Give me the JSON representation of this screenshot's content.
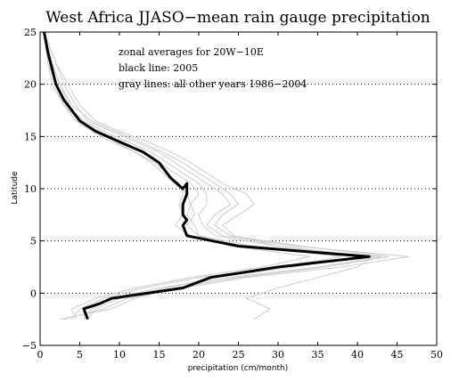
{
  "chart_data": {
    "type": "line",
    "title": "West Africa JJASO−mean rain gauge precipitation",
    "xlabel": "precipitation (cm/month)",
    "ylabel": "Latitude",
    "xlim": [
      0,
      50
    ],
    "ylim": [
      -5,
      25
    ],
    "x_ticks": [
      "0",
      "5",
      "10",
      "15",
      "20",
      "25",
      "30",
      "35",
      "40",
      "45",
      "50"
    ],
    "y_ticks": [
      "−5",
      "0",
      "5",
      "10",
      "15",
      "20",
      "25"
    ],
    "y_gridlines_dotted": [
      0,
      5,
      10,
      15,
      20
    ],
    "annotations": [
      "zonal averages for 20W−10E",
      "black line: 2005",
      "gray lines: all other years 1986−2004"
    ],
    "colors": {
      "highlight": "#000000",
      "background_lines": "#cccccc"
    },
    "highlight_series": {
      "name": "2005",
      "points": [
        [
          0.5,
          25
        ],
        [
          1.0,
          23
        ],
        [
          1.5,
          21.5
        ],
        [
          2.0,
          20.0
        ],
        [
          3.0,
          18.5
        ],
        [
          4.0,
          17.5
        ],
        [
          5.0,
          16.5
        ],
        [
          7.0,
          15.5
        ],
        [
          10.0,
          14.5
        ],
        [
          13.0,
          13.5
        ],
        [
          15.0,
          12.5
        ],
        [
          16.5,
          11.0
        ],
        [
          18.0,
          10.0
        ],
        [
          18.5,
          10.5
        ],
        [
          18.5,
          9.5
        ],
        [
          18.0,
          8.5
        ],
        [
          18.0,
          7.5
        ],
        [
          18.5,
          7.0
        ],
        [
          18.0,
          6.5
        ],
        [
          18.5,
          5.5
        ],
        [
          25.0,
          4.5
        ],
        [
          41.5,
          3.5
        ],
        [
          30.0,
          2.5
        ],
        [
          21.5,
          1.5
        ],
        [
          18.0,
          0.5
        ],
        [
          9.0,
          -0.5
        ],
        [
          7.5,
          -1.0
        ],
        [
          5.5,
          -1.5
        ],
        [
          6.0,
          -2.5
        ]
      ]
    },
    "background_series": [
      {
        "points": [
          [
            0.5,
            25
          ],
          [
            1.5,
            22
          ],
          [
            2.5,
            20
          ],
          [
            4.0,
            17.5
          ],
          [
            5.5,
            16.5
          ],
          [
            8.0,
            15.5
          ],
          [
            11.0,
            14.5
          ],
          [
            14.0,
            13.5
          ],
          [
            16.0,
            12.5
          ],
          [
            18.0,
            11.5
          ],
          [
            20.0,
            10.5
          ],
          [
            21.0,
            9.5
          ],
          [
            21.0,
            8.5
          ],
          [
            20.0,
            7.5
          ],
          [
            20.5,
            6.5
          ],
          [
            22.0,
            5.5
          ],
          [
            30.0,
            4.5
          ],
          [
            40.0,
            3.5
          ],
          [
            32.0,
            2.5
          ],
          [
            22.0,
            1.5
          ],
          [
            16.0,
            0.5
          ],
          [
            10.0,
            -0.5
          ],
          [
            7.0,
            -1.5
          ],
          [
            6.0,
            -2.5
          ]
        ]
      },
      {
        "points": [
          [
            0.5,
            25
          ],
          [
            1.0,
            22
          ],
          [
            2.0,
            20
          ],
          [
            3.0,
            18
          ],
          [
            5.0,
            16.5
          ],
          [
            7.5,
            15.5
          ],
          [
            10.0,
            14.5
          ],
          [
            13.0,
            13.5
          ],
          [
            15.0,
            12.5
          ],
          [
            17.0,
            11.5
          ],
          [
            19.0,
            10.5
          ],
          [
            20.0,
            9.5
          ],
          [
            19.0,
            8.5
          ],
          [
            18.5,
            7.5
          ],
          [
            19.5,
            6.5
          ],
          [
            20.0,
            5.5
          ],
          [
            27.0,
            4.5
          ],
          [
            43.0,
            3.5
          ],
          [
            35.0,
            2.5
          ],
          [
            24.0,
            1.5
          ],
          [
            15.0,
            0.5
          ],
          [
            9.0,
            -0.5
          ],
          [
            6.5,
            -1.5
          ],
          [
            5.5,
            -2.5
          ]
        ]
      },
      {
        "points": [
          [
            0.5,
            25
          ],
          [
            2.0,
            22
          ],
          [
            3.0,
            20
          ],
          [
            4.5,
            18
          ],
          [
            6.0,
            16.5
          ],
          [
            9.0,
            15.5
          ],
          [
            12.0,
            14.5
          ],
          [
            15.0,
            13.5
          ],
          [
            17.0,
            12.5
          ],
          [
            19.0,
            11.5
          ],
          [
            21.0,
            10.5
          ],
          [
            23.0,
            9.5
          ],
          [
            24.0,
            8.5
          ],
          [
            22.0,
            7.5
          ],
          [
            21.0,
            6.5
          ],
          [
            23.0,
            5.5
          ],
          [
            32.0,
            4.5
          ],
          [
            46.5,
            3.5
          ],
          [
            38.0,
            2.5
          ],
          [
            26.0,
            1.5
          ],
          [
            18.0,
            0.5
          ],
          [
            11.0,
            -0.5
          ],
          [
            8.0,
            -1.5
          ],
          [
            3.0,
            -2.5
          ]
        ]
      },
      {
        "points": [
          [
            0.5,
            25
          ],
          [
            1.0,
            22
          ],
          [
            2.0,
            20
          ],
          [
            3.5,
            18
          ],
          [
            5.0,
            16.5
          ],
          [
            7.0,
            15.5
          ],
          [
            9.5,
            14.5
          ],
          [
            12.0,
            13.5
          ],
          [
            14.5,
            12.5
          ],
          [
            16.0,
            11.5
          ],
          [
            17.5,
            10.5
          ],
          [
            18.0,
            9.5
          ],
          [
            17.5,
            8.5
          ],
          [
            18.0,
            7.5
          ],
          [
            17.0,
            6.5
          ],
          [
            19.0,
            5.5
          ],
          [
            26.0,
            4.5
          ],
          [
            38.0,
            3.5
          ],
          [
            30.0,
            2.5
          ],
          [
            20.0,
            1.5
          ],
          [
            13.0,
            0.5
          ],
          [
            8.0,
            -0.5
          ],
          [
            5.0,
            -1.5
          ],
          [
            4.0,
            -2.5
          ]
        ]
      },
      {
        "points": [
          [
            0.5,
            25
          ],
          [
            1.5,
            22
          ],
          [
            2.5,
            20
          ],
          [
            4.0,
            18
          ],
          [
            6.5,
            16.5
          ],
          [
            9.5,
            15.5
          ],
          [
            12.5,
            14.5
          ],
          [
            15.5,
            13.5
          ],
          [
            18.0,
            12.5
          ],
          [
            20.0,
            11.5
          ],
          [
            22.0,
            10.5
          ],
          [
            24.0,
            9.5
          ],
          [
            25.0,
            8.5
          ],
          [
            23.0,
            7.5
          ],
          [
            22.0,
            6.5
          ],
          [
            24.0,
            5.5
          ],
          [
            33.0,
            4.5
          ],
          [
            44.0,
            3.5
          ],
          [
            36.0,
            2.5
          ],
          [
            25.0,
            1.5
          ],
          [
            17.0,
            0.5
          ],
          [
            12.0,
            -0.5
          ],
          [
            9.0,
            -1.5
          ],
          [
            2.5,
            -2.5
          ]
        ]
      },
      {
        "points": [
          [
            0.5,
            25
          ],
          [
            1.0,
            22
          ],
          [
            1.5,
            20
          ],
          [
            3.0,
            18
          ],
          [
            4.5,
            16.5
          ],
          [
            6.5,
            15.5
          ],
          [
            9.0,
            14.5
          ],
          [
            12.0,
            13.5
          ],
          [
            14.0,
            12.5
          ],
          [
            15.5,
            11.5
          ],
          [
            17.0,
            10.5
          ],
          [
            18.5,
            9.5
          ],
          [
            19.0,
            8.5
          ],
          [
            19.5,
            7.5
          ],
          [
            18.5,
            6.5
          ],
          [
            20.0,
            5.5
          ],
          [
            24.0,
            4.5
          ],
          [
            34.0,
            3.5
          ],
          [
            28.0,
            2.5
          ],
          [
            19.0,
            1.5
          ],
          [
            12.0,
            0.5
          ],
          [
            7.0,
            -0.5
          ],
          [
            4.0,
            -1.5
          ],
          [
            4.5,
            -2.5
          ]
        ]
      },
      {
        "points": [
          [
            0.5,
            25
          ],
          [
            2.0,
            22
          ],
          [
            3.5,
            20
          ],
          [
            5.0,
            18
          ],
          [
            7.0,
            16.5
          ],
          [
            10.0,
            15.5
          ],
          [
            13.5,
            14.5
          ],
          [
            16.5,
            13.5
          ],
          [
            19.0,
            12.5
          ],
          [
            21.0,
            11.5
          ],
          [
            23.0,
            10.5
          ],
          [
            26.0,
            9.5
          ],
          [
            27.0,
            8.5
          ],
          [
            25.0,
            7.5
          ],
          [
            23.0,
            6.5
          ],
          [
            24.5,
            5.5
          ],
          [
            30.0,
            4.5
          ],
          [
            42.0,
            3.5
          ],
          [
            40.0,
            2.5
          ],
          [
            35.0,
            1.5
          ],
          [
            30.0,
            0.5
          ],
          [
            26.0,
            -0.5
          ],
          [
            29.0,
            -1.5
          ],
          [
            27.0,
            -2.5
          ]
        ]
      }
    ]
  }
}
